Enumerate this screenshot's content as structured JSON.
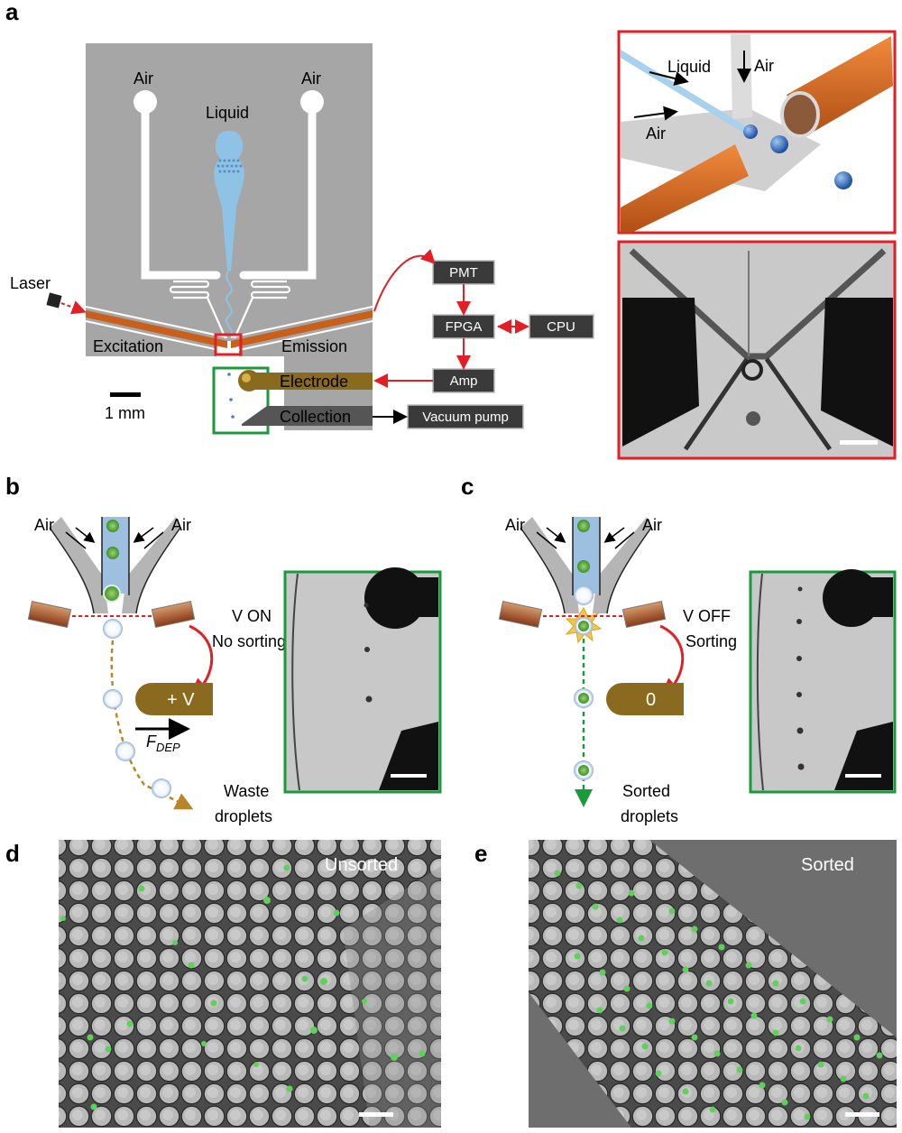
{
  "panel_labels": {
    "a": "a",
    "b": "b",
    "c": "c",
    "d": "d",
    "e": "e"
  },
  "panel_a": {
    "air_left": "Air",
    "air_right": "Air",
    "liquid": "Liquid",
    "laser": "Laser",
    "excitation": "Excitation",
    "emission": "Emission",
    "electrode": "Electrode",
    "collection": "Collection",
    "scale": "1 mm",
    "boxes": {
      "pmt": "PMT",
      "fpga": "FPGA",
      "cpu": "CPU",
      "amp": "Amp",
      "vacuum": "Vacuum pump"
    },
    "inset_liquid": "Liquid",
    "inset_air_top": "Air",
    "inset_air_left": "Air"
  },
  "panel_b": {
    "air_left": "Air",
    "air_right": "Air",
    "state_line1": "V ON",
    "state_line2": "No sorting",
    "electrode_value": "+ V",
    "force_main": "F",
    "force_sub": "DEP",
    "out_line1": "Waste",
    "out_line2": "droplets"
  },
  "panel_c": {
    "air_left": "Air",
    "air_right": "Air",
    "state_line1": "V OFF",
    "state_line2": "Sorting",
    "electrode_value": "0",
    "out_line1": "Sorted",
    "out_line2": "droplets"
  },
  "panel_d": {
    "label": "Unsorted"
  },
  "panel_e": {
    "label": "Sorted"
  },
  "colors": {
    "frame_red": "#e31e24",
    "frame_green": "#1a9a3a",
    "copper": "#c8601c",
    "electrode": "#8a6a1e",
    "liquid": "#8fc3e6",
    "chip": "#a6a6a6",
    "box": "#3a3a3a"
  }
}
